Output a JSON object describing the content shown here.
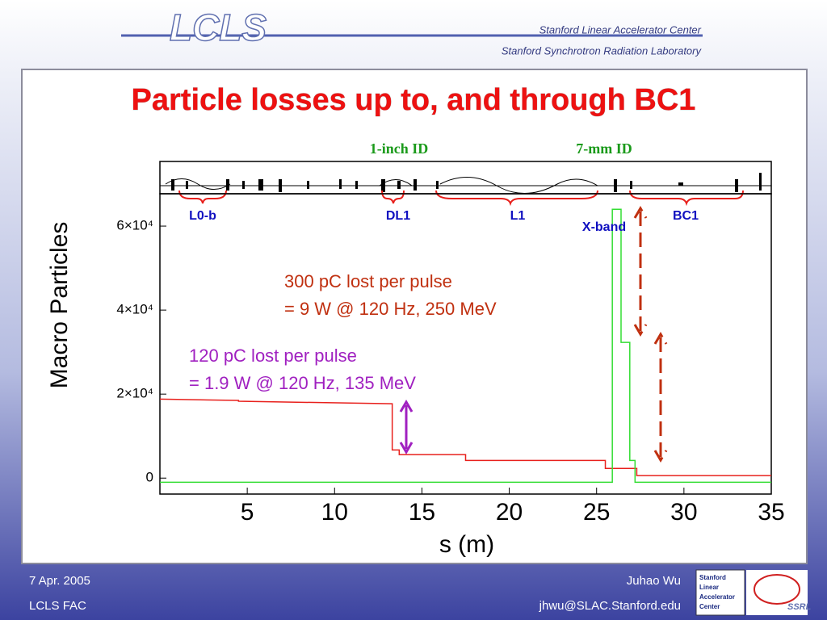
{
  "header": {
    "logo": "LCLS",
    "org1": "Stanford Linear Accelerator Center",
    "org2": "Stanford Synchrotron Radiation Laboratory"
  },
  "title": "Particle losses up to, and through BC1",
  "chart_data": {
    "type": "line",
    "xlabel": "s (m)",
    "ylabel": "Macro Particles",
    "xlim": [
      0,
      35
    ],
    "ylim": [
      -3800,
      67700
    ],
    "xticks": [
      5,
      10,
      15,
      20,
      25,
      30,
      35
    ],
    "yticks": [
      0,
      {
        "value": 20000,
        "label": "2×10⁴"
      },
      {
        "value": 40000,
        "label": "4×10⁴"
      },
      {
        "value": 60000,
        "label": "6×10⁴"
      }
    ],
    "series": [
      {
        "color": "#e8201c",
        "x": [
          0,
          4.5,
          4.5,
          13.3,
          13.3,
          13.7,
          13.7,
          17.5,
          17.5,
          25.5,
          25.5,
          27.3,
          27.3,
          35
        ],
        "values": [
          18800,
          18500,
          18300,
          17700,
          6700,
          6700,
          5600,
          5600,
          4200,
          4200,
          2300,
          2300,
          600,
          600
        ]
      },
      {
        "color": "#33dd33",
        "x": [
          0,
          25.9,
          25.9,
          26.4,
          26.4,
          26.9,
          26.9,
          27.2,
          27.2,
          35
        ],
        "values": [
          -1000,
          -1000,
          64000,
          64000,
          32300,
          32300,
          4200,
          4200,
          -1000,
          -1000
        ]
      }
    ],
    "annotations": [
      "1-inch ID",
      "7-mm ID",
      "L0-b",
      "DL1",
      "L1",
      "X-band",
      "BC1",
      "300 pC lost per pulse",
      "= 9 W @ 120 Hz, 250 MeV",
      "120 pC lost per pulse",
      "= 1.9 W @ 120 Hz, 135 MeV"
    ]
  },
  "footer": {
    "date": "7 Apr. 2005",
    "event": "LCLS FAC",
    "author": "Juhao Wu",
    "email": "jhwu@SLAC.Stanford.edu",
    "badge": [
      "Stanford",
      "Linear",
      "Accelerator",
      "Center"
    ],
    "ssrl": "SSRL"
  }
}
